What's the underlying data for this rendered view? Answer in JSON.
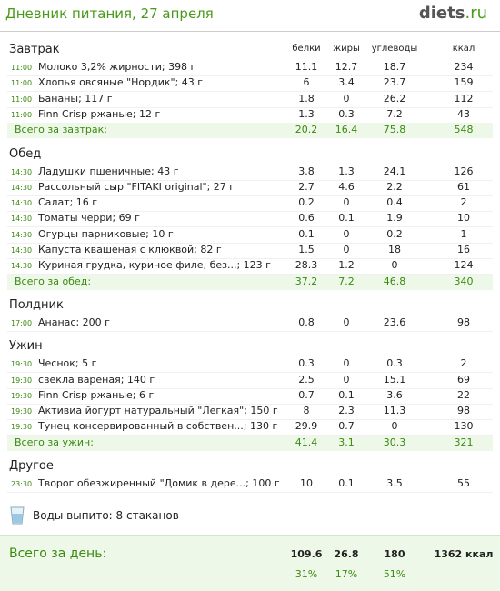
{
  "header": {
    "title": "Дневник питания, 27 апреля",
    "logo_main": "diets",
    "logo_suffix": ".ru"
  },
  "columns": [
    "белки",
    "жиры",
    "углеводы",
    "ккал"
  ],
  "sections": [
    {
      "title": "Завтрак",
      "rows": [
        {
          "time": "11:00",
          "name": "Молоко 3,2% жирности; 398 г",
          "values": [
            11.1,
            12.7,
            18.7,
            234
          ]
        },
        {
          "time": "11:00",
          "name": "Хлопья овсяные \"Нордик\"; 43 г",
          "values": [
            6,
            3.4,
            23.7,
            159
          ]
        },
        {
          "time": "11:00",
          "name": "Бананы; 117 г",
          "values": [
            1.8,
            0,
            26.2,
            112
          ]
        },
        {
          "time": "11:00",
          "name": "Finn Crisp ржаные; 12 г",
          "values": [
            1.3,
            0.3,
            7.2,
            43
          ]
        }
      ],
      "total": {
        "label": "Всего за завтрак:",
        "values": [
          20.2,
          16.4,
          75.8,
          548
        ]
      }
    },
    {
      "title": "Обед",
      "rows": [
        {
          "time": "14:30",
          "name": "Ладушки пшеничные; 43 г",
          "values": [
            3.8,
            1.3,
            24.1,
            126
          ]
        },
        {
          "time": "14:30",
          "name": "Рассольный сыр \"FITAKI original\"; 27 г",
          "values": [
            2.7,
            4.6,
            2.2,
            61
          ]
        },
        {
          "time": "14:30",
          "name": "Салат; 16 г",
          "values": [
            0.2,
            0,
            0.4,
            2
          ]
        },
        {
          "time": "14:30",
          "name": "Томаты черри; 69 г",
          "values": [
            0.6,
            0.1,
            1.9,
            10
          ]
        },
        {
          "time": "14:30",
          "name": "Огурцы парниковые; 10 г",
          "values": [
            0.1,
            0,
            0.2,
            1
          ]
        },
        {
          "time": "14:30",
          "name": "Капуста квашеная с клюквой; 82 г",
          "values": [
            1.5,
            0,
            18,
            16
          ]
        },
        {
          "time": "14:30",
          "name": "Куриная грудка, куриное филе, без...; 123 г",
          "values": [
            28.3,
            1.2,
            0,
            124
          ]
        }
      ],
      "total": {
        "label": "Всего за обед:",
        "values": [
          37.2,
          7.2,
          46.8,
          340
        ]
      }
    },
    {
      "title": "Полдник",
      "rows": [
        {
          "time": "17:00",
          "name": "Ананас; 200 г",
          "values": [
            0.8,
            0,
            23.6,
            98
          ]
        }
      ]
    },
    {
      "title": "Ужин",
      "rows": [
        {
          "time": "19:30",
          "name": "Чеснок; 5 г",
          "values": [
            0.3,
            0,
            0.3,
            2
          ]
        },
        {
          "time": "19:30",
          "name": "свекла вареная; 140 г",
          "values": [
            2.5,
            0,
            15.1,
            69
          ]
        },
        {
          "time": "19:30",
          "name": "Finn Crisp ржаные; 6 г",
          "values": [
            0.7,
            0.1,
            3.6,
            22
          ]
        },
        {
          "time": "19:30",
          "name": "Активиа йогурт натуральный \"Легкая\"; 150 г",
          "values": [
            8,
            2.3,
            11.3,
            98
          ]
        },
        {
          "time": "19:30",
          "name": "Тунец консервированный в собствен...; 130 г",
          "values": [
            29.9,
            0.7,
            0,
            130
          ]
        }
      ],
      "total": {
        "label": "Всего за ужин:",
        "values": [
          41.4,
          3.1,
          30.3,
          321
        ]
      }
    },
    {
      "title": "Другое",
      "rows": [
        {
          "time": "23:30",
          "name": "Творог обезжиренный \"Домик в дере...; 100 г",
          "values": [
            10,
            0.1,
            3.5,
            55
          ]
        }
      ]
    }
  ],
  "water": "Воды выпито: 8 стаканов",
  "day_total": {
    "label": "Всего за день:",
    "values": [
      109.6,
      26.8,
      180,
      "1362 ккал"
    ],
    "percents": [
      "31%",
      "17%",
      "51%"
    ]
  }
}
